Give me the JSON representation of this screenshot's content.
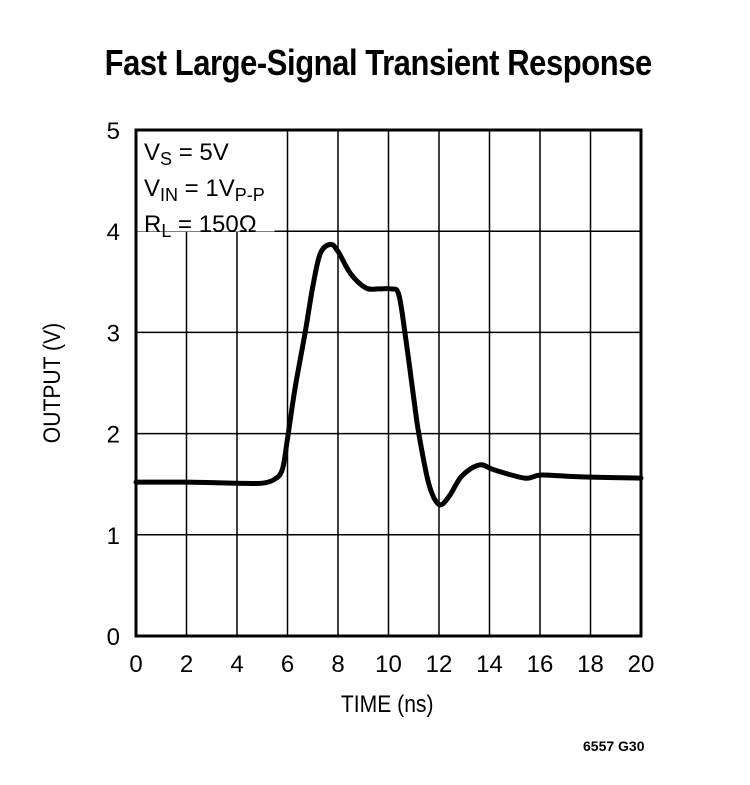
{
  "title": "Fast Large-Signal Transient Response",
  "figure_id": "6557 G30",
  "legend": {
    "lines": [
      {
        "main": "V",
        "sub": "S",
        "rest": " = 5V"
      },
      {
        "main": "V",
        "sub": "IN",
        "rest": " = 1V",
        "sub2": "P-P"
      },
      {
        "main": "R",
        "sub": "L",
        "rest": " = 150Ω"
      }
    ]
  },
  "chart_data": {
    "type": "line",
    "title": "Fast Large-Signal Transient Response",
    "xlabel": "TIME (ns)",
    "ylabel": "OUTPUT (V)",
    "xlim": [
      0,
      20
    ],
    "ylim": [
      0,
      5
    ],
    "xticks": [
      0,
      2,
      4,
      6,
      8,
      10,
      12,
      14,
      16,
      18,
      20
    ],
    "yticks": [
      0,
      1,
      2,
      3,
      4,
      5
    ],
    "grid": true,
    "annotations": [
      "VS = 5V",
      "VIN = 1VP-P",
      "RL = 150Ω"
    ],
    "series": [
      {
        "name": "Output",
        "x": [
          0,
          2,
          4,
          5,
          5.5,
          5.8,
          6.0,
          6.3,
          6.7,
          7.0,
          7.3,
          7.7,
          8.0,
          8.5,
          9.1,
          9.6,
          10.1,
          10.4,
          10.65,
          11.0,
          11.2,
          11.6,
          12.0,
          12.4,
          12.9,
          13.6,
          14.2,
          15.4,
          16.0,
          17.0,
          18.0,
          20.0
        ],
        "y": [
          1.52,
          1.52,
          1.51,
          1.51,
          1.55,
          1.65,
          1.95,
          2.45,
          3.0,
          3.45,
          3.78,
          3.87,
          3.8,
          3.58,
          3.44,
          3.43,
          3.43,
          3.38,
          3.0,
          2.35,
          2.0,
          1.5,
          1.3,
          1.38,
          1.58,
          1.69,
          1.64,
          1.56,
          1.59,
          1.58,
          1.57,
          1.56
        ]
      }
    ]
  }
}
